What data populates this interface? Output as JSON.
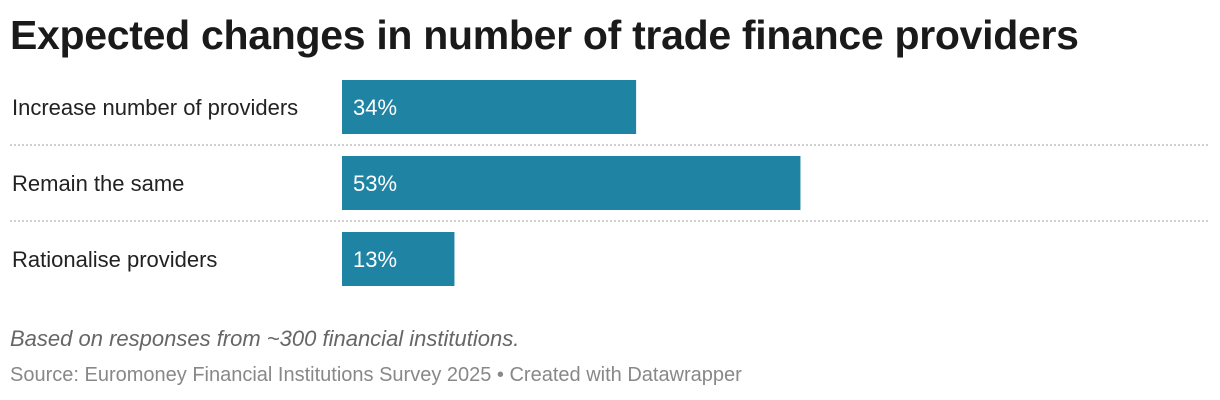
{
  "chart_data": {
    "type": "bar",
    "orientation": "horizontal",
    "title": "Expected changes in number of trade finance providers",
    "categories": [
      "Increase number of providers",
      "Remain the same",
      "Rationalise providers"
    ],
    "values": [
      34,
      53,
      13
    ],
    "value_labels": [
      "34%",
      "53%",
      "13%"
    ],
    "unit": "%",
    "xlim": [
      0,
      100
    ],
    "grid": false,
    "bar_color": "#1f83a4",
    "note": "Based on responses from ~300 financial institutions.",
    "source": "Source: Euromoney Financial Institutions Survey 2025 • Created with Datawrapper"
  }
}
